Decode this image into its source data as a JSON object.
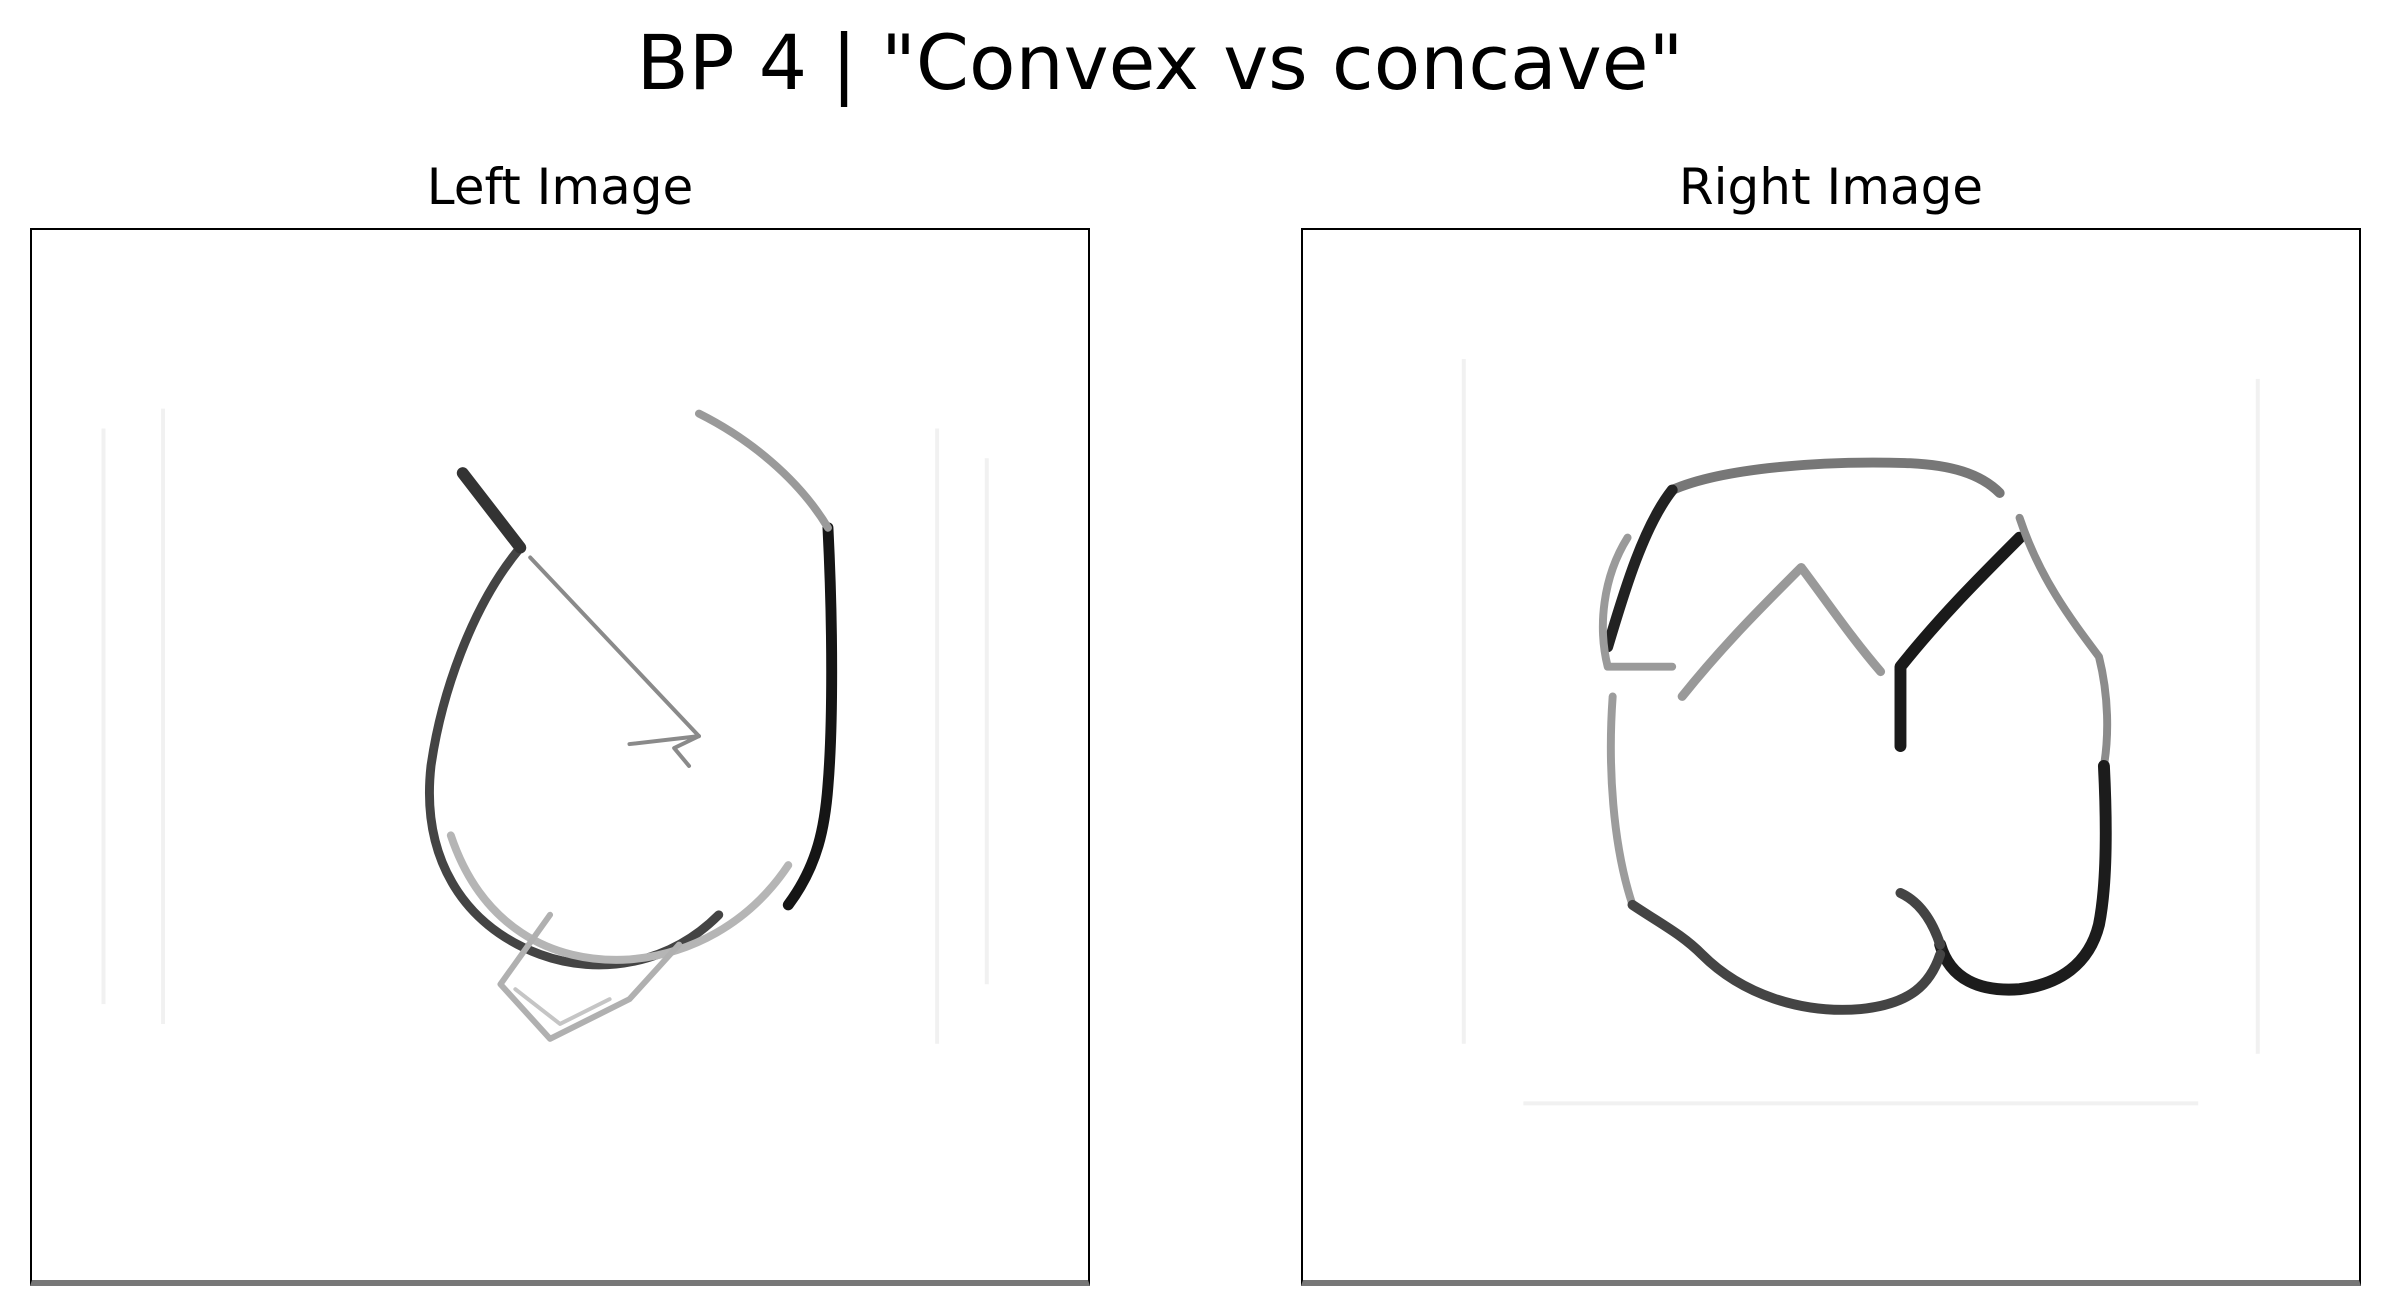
{
  "figure": {
    "title": "BP 4 | \"Convex vs concave\""
  },
  "panels": {
    "left": {
      "title": "Left Image",
      "shape_description": "open convex loop sketch"
    },
    "right": {
      "title": "Right Image",
      "shape_description": "concave blob outline with notches"
    }
  },
  "colors": {
    "background": "#ffffff",
    "stroke_dark": "#111111",
    "stroke_mid": "#666666",
    "stroke_light": "#b5b5b5",
    "frame_bottom": "#777777"
  }
}
